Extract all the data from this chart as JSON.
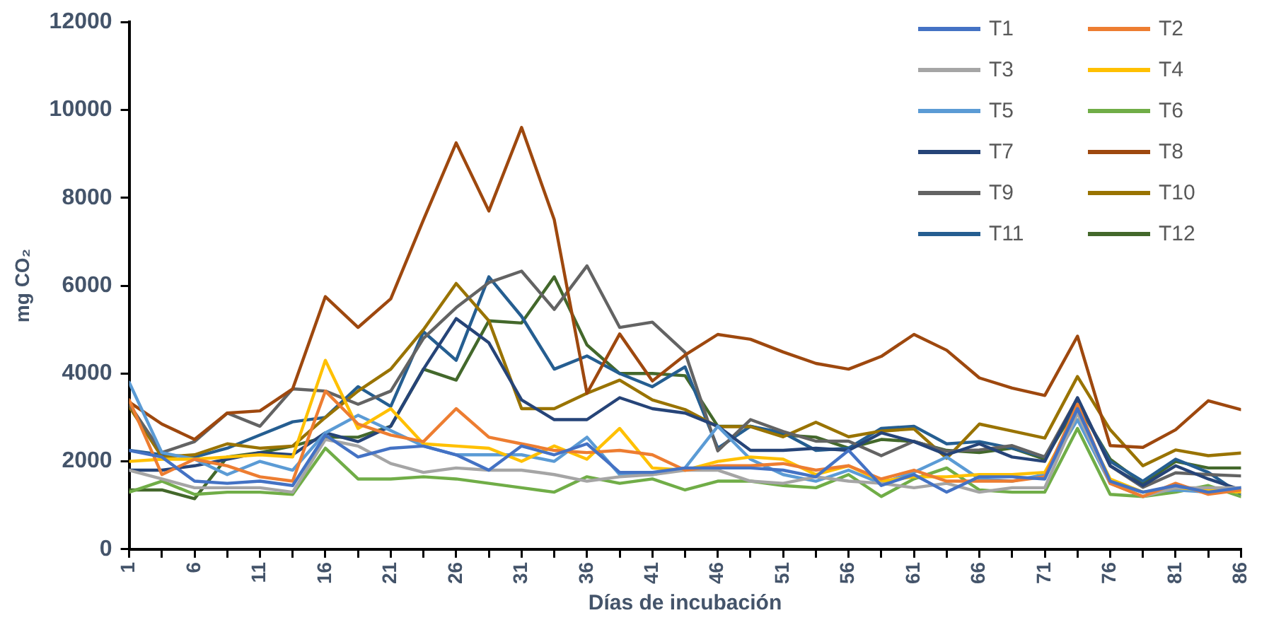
{
  "chart_data": {
    "type": "line",
    "xlabel": "Días de incubación",
    "ylabel": "mg CO₂",
    "x": [
      1,
      3.5,
      6,
      8.5,
      11,
      13.5,
      16,
      18.5,
      21,
      23.5,
      26,
      28.5,
      31,
      33.5,
      36,
      38.5,
      41,
      43.5,
      46,
      48.5,
      51,
      53.5,
      56,
      58.5,
      61,
      63.5,
      66,
      68.5,
      71,
      73.5,
      76,
      78.5,
      81,
      83.5,
      86
    ],
    "xlim": [
      1,
      86
    ],
    "xticks": [
      1,
      {
        "value": 3.5,
        "label": null
      },
      6,
      {
        "value": 8.5,
        "label": null
      },
      11,
      {
        "value": 13.5,
        "label": null
      },
      16,
      {
        "value": 18.5,
        "label": null
      },
      21,
      {
        "value": 23.5,
        "label": null
      },
      26,
      {
        "value": 28.5,
        "label": null
      },
      31,
      {
        "value": 33.5,
        "label": null
      },
      36,
      {
        "value": 38.5,
        "label": null
      },
      41,
      {
        "value": 43.5,
        "label": null
      },
      46,
      {
        "value": 48.5,
        "label": null
      },
      51,
      {
        "value": 53.5,
        "label": null
      },
      56,
      {
        "value": 58.5,
        "label": null
      },
      61,
      {
        "value": 63.5,
        "label": null
      },
      66,
      {
        "value": 68.5,
        "label": null
      },
      71,
      {
        "value": 73.5,
        "label": null
      },
      76,
      {
        "value": 78.5,
        "label": null
      },
      81,
      {
        "value": 83.5,
        "label": null
      },
      86
    ],
    "ylim": [
      0,
      12000
    ],
    "yticks": [
      0,
      2000,
      4000,
      6000,
      8000,
      10000,
      12000
    ],
    "grid": false,
    "legend": "top right",
    "marker": "none",
    "line_style": "solid",
    "series": [
      {
        "name": "T1",
        "color": "#4472c4",
        "values": [
          2250,
          2100,
          1550,
          1500,
          1550,
          1450,
          2600,
          2100,
          2300,
          2350,
          2150,
          1800,
          2350,
          2150,
          2400,
          1750,
          1750,
          1850,
          1850,
          1850,
          1800,
          1650,
          2250,
          1450,
          1700,
          1300,
          1650,
          1650,
          1600,
          3200,
          1550,
          1300,
          1450,
          1300,
          1400
        ]
      },
      {
        "name": "T2",
        "color": "#ed7d31",
        "values": [
          3400,
          1700,
          2050,
          1900,
          1650,
          1550,
          3600,
          2850,
          2600,
          2450,
          3200,
          2550,
          2400,
          2250,
          2200,
          2250,
          2150,
          1800,
          1900,
          1900,
          1950,
          1800,
          1900,
          1600,
          1800,
          1550,
          1550,
          1550,
          1650,
          3300,
          1500,
          1200,
          1500,
          1250,
          1350
        ]
      },
      {
        "name": "T3",
        "color": "#a5a5a5",
        "values": [
          1800,
          1600,
          1400,
          1400,
          1400,
          1300,
          2500,
          2350,
          1950,
          1750,
          1850,
          1800,
          1800,
          1700,
          1550,
          1650,
          1700,
          1800,
          1800,
          1550,
          1500,
          1650,
          1550,
          1500,
          1400,
          1500,
          1300,
          1400,
          1400,
          3100,
          1500,
          1200,
          1400,
          1400,
          1400
        ]
      },
      {
        "name": "T4",
        "color": "#ffc000",
        "values": [
          2000,
          2050,
          2050,
          2100,
          2150,
          2100,
          4300,
          2750,
          3200,
          2400,
          2350,
          2300,
          2000,
          2350,
          2050,
          2750,
          1850,
          1800,
          2000,
          2100,
          2050,
          1700,
          1900,
          1550,
          1650,
          1650,
          1700,
          1700,
          1750,
          3100,
          1600,
          1300,
          1400,
          1350,
          1300
        ]
      },
      {
        "name": "T5",
        "color": "#5b9bd5",
        "values": [
          3800,
          2200,
          2050,
          1700,
          2000,
          1800,
          2650,
          3050,
          2700,
          2350,
          2150,
          2150,
          2150,
          2000,
          2550,
          1700,
          1700,
          1850,
          2800,
          2050,
          1700,
          1550,
          1800,
          1500,
          1750,
          2100,
          1600,
          1550,
          1700,
          2950,
          1500,
          1300,
          1350,
          1300,
          1400
        ]
      },
      {
        "name": "T6",
        "color": "#70ad47",
        "values": [
          1300,
          1550,
          1250,
          1300,
          1300,
          1250,
          2300,
          1600,
          1600,
          1650,
          1600,
          1500,
          1400,
          1300,
          1650,
          1500,
          1600,
          1350,
          1550,
          1550,
          1450,
          1400,
          1700,
          1200,
          1600,
          1850,
          1350,
          1300,
          1300,
          2750,
          1250,
          1200,
          1300,
          1450,
          1200
        ]
      },
      {
        "name": "T7",
        "color": "#264478",
        "values": [
          1800,
          1800,
          1900,
          2050,
          2200,
          2150,
          2650,
          2450,
          2800,
          4100,
          5250,
          4700,
          3400,
          2950,
          2950,
          3450,
          3200,
          3100,
          2800,
          2250,
          2250,
          2300,
          2250,
          2650,
          2450,
          2150,
          2400,
          2100,
          2000,
          3450,
          1900,
          1450,
          1900,
          1600,
          1350
        ]
      },
      {
        "name": "T8",
        "color": "#9e480e",
        "values": [
          3350,
          2850,
          2500,
          3100,
          3150,
          3650,
          5750,
          5050,
          5700,
          7500,
          9250,
          7700,
          9600,
          7500,
          3550,
          4900,
          3830,
          4420,
          4890,
          4780,
          4490,
          4230,
          4100,
          4390,
          4890,
          4530,
          3900,
          3670,
          3500,
          4850,
          2360,
          2320,
          2720,
          3380,
          3180
        ]
      },
      {
        "name": "T9",
        "color": "#636363",
        "values": [
          3300,
          2200,
          2450,
          3100,
          2800,
          3650,
          3600,
          3300,
          3600,
          4800,
          5500,
          6070,
          6330,
          5460,
          6450,
          5050,
          5170,
          4480,
          2240,
          2950,
          2680,
          2460,
          2460,
          2130,
          2460,
          2230,
          2260,
          2360,
          2100,
          3440,
          1900,
          1410,
          1740,
          1700,
          1670
        ]
      },
      {
        "name": "T10",
        "color": "#997300",
        "values": [
          3250,
          2100,
          2150,
          2400,
          2300,
          2350,
          3000,
          3600,
          4100,
          5000,
          6050,
          5200,
          3200,
          3200,
          3550,
          3850,
          3400,
          3180,
          2790,
          2790,
          2560,
          2890,
          2560,
          2690,
          2740,
          2070,
          2850,
          2690,
          2530,
          3930,
          2720,
          1900,
          2260,
          2130,
          2190
        ]
      },
      {
        "name": "T11",
        "color": "#255e91",
        "values": [
          2250,
          2150,
          2100,
          2300,
          2600,
          2900,
          3000,
          3700,
          3250,
          4950,
          4300,
          6200,
          5300,
          4100,
          4400,
          4000,
          3700,
          4150,
          2300,
          2800,
          2650,
          2250,
          2300,
          2750,
          2800,
          2400,
          2450,
          2300,
          2100,
          3350,
          2000,
          1550,
          2050,
          1750,
          1250
        ]
      },
      {
        "name": "T12",
        "color": "#43682b",
        "values": [
          1350,
          1350,
          1150,
          2100,
          2200,
          2350,
          2550,
          2550,
          2800,
          4100,
          3850,
          5200,
          5150,
          6200,
          4650,
          4000,
          4000,
          3950,
          2800,
          2800,
          2600,
          2550,
          2300,
          2500,
          2450,
          2250,
          2200,
          2300,
          2050,
          3300,
          2050,
          1500,
          2000,
          1850,
          1850
        ]
      }
    ]
  }
}
